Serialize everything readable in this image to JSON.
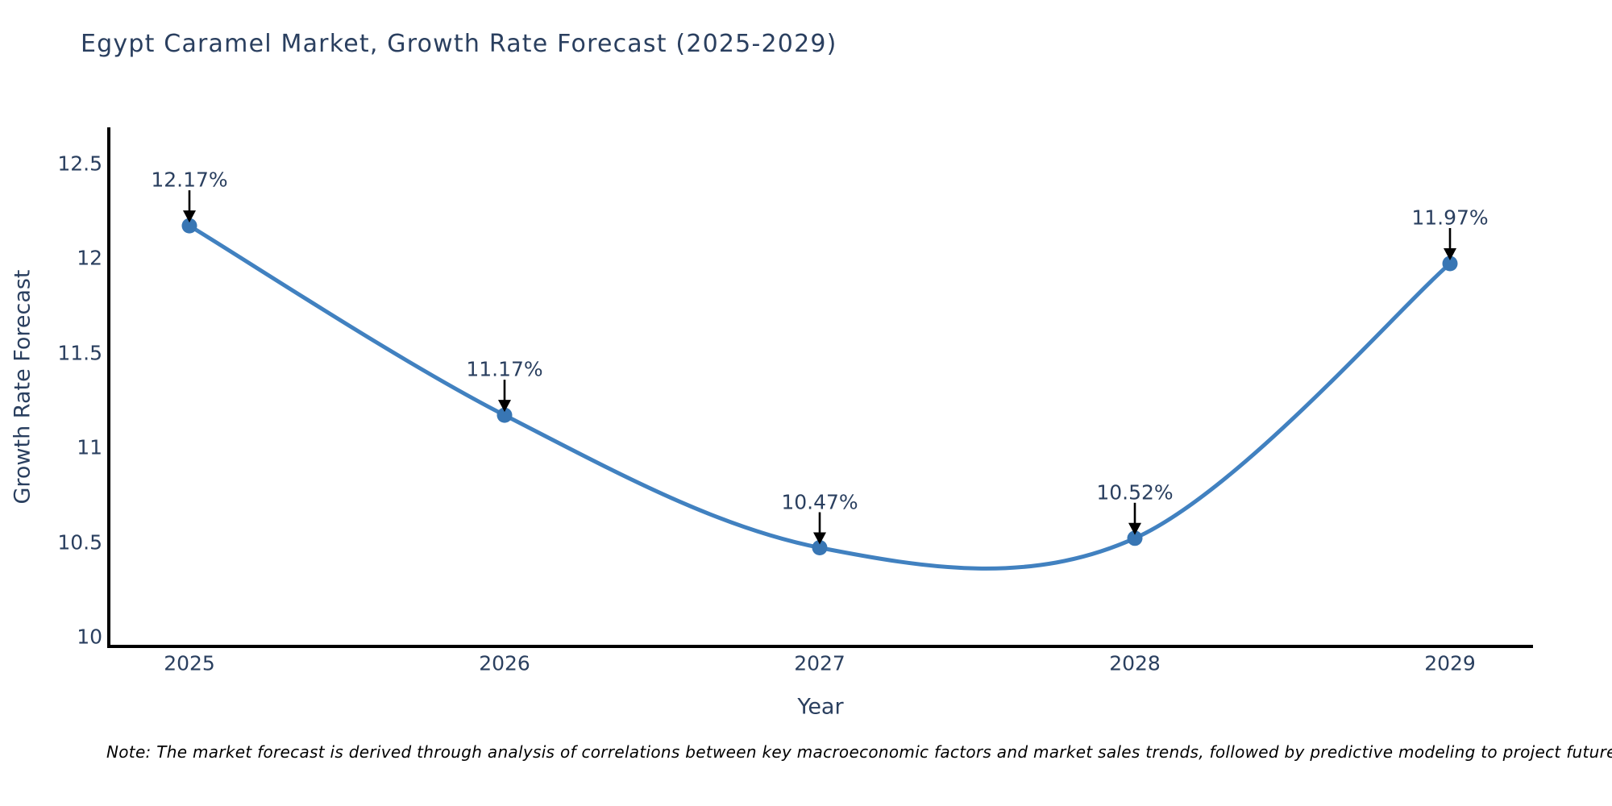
{
  "note": {
    "text": "Note: The market forecast is derived through analysis of correlations between key macroeconomic factors and market sales trends, followed by predictive modeling to project future sales."
  },
  "chart_data": {
    "type": "line",
    "title": "Egypt Caramel Market, Growth Rate Forecast (2025-2029)",
    "xlabel": "Year",
    "ylabel": "Growth Rate Forecast",
    "categories": [
      2025,
      2026,
      2027,
      2028,
      2029
    ],
    "series": [
      {
        "name": "Growth Rate Forecast",
        "values": [
          12.17,
          11.17,
          10.47,
          10.52,
          11.97
        ]
      }
    ],
    "annotations": [
      "12.17%",
      "11.17%",
      "10.47%",
      "10.52%",
      "11.97%"
    ],
    "yticks": [
      "10",
      "10.5",
      "11",
      "11.5",
      "12",
      "12.5"
    ],
    "ytick_values": [
      10,
      10.5,
      11,
      11.5,
      12,
      12.5
    ],
    "ylim": [
      9.95,
      12.69
    ],
    "xlim": [
      2024.74,
      2029.26
    ],
    "line_shape": "spline",
    "grid": false,
    "legend": "none",
    "colors": {
      "line": "#4181c0",
      "marker": "#3876b4",
      "arrow": "#000000",
      "axis": "#000000",
      "text": "#2a3f5f",
      "title": "#2a3f5f",
      "note": "#000000",
      "background": "#ffffff"
    }
  }
}
